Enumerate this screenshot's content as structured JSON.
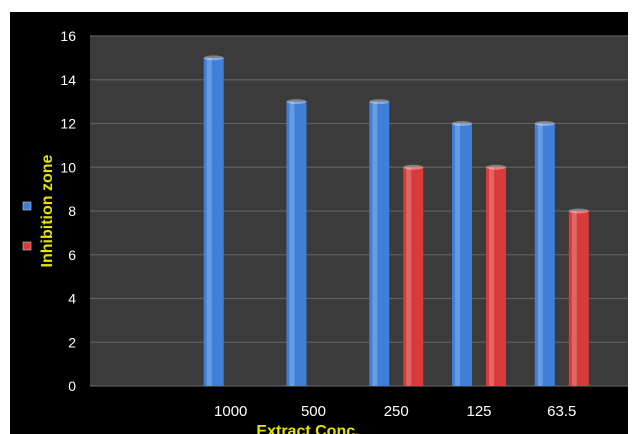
{
  "chart_data": {
    "type": "bar",
    "title": "",
    "xlabel": "Extract Conc.",
    "ylabel": "Inhibition zone",
    "categories": [
      "",
      "1000",
      "500",
      "250",
      "125",
      "63.5"
    ],
    "series": [
      {
        "values": [
          null,
          15,
          13,
          13,
          12,
          12
        ],
        "color": "#3f7fd8"
      },
      {
        "values": [
          null,
          null,
          null,
          10,
          10,
          8
        ],
        "color": "#d93a3a"
      }
    ],
    "ylim": [
      0,
      16
    ],
    "yticks": [
      "0",
      "2",
      "4",
      "6",
      "8",
      "10",
      "12",
      "14",
      "16"
    ],
    "grid": true,
    "legend": "left (marker swatches only)",
    "colors": {
      "frame": "#000000",
      "plot_area": "#3b3b3b",
      "gridline": "#5e5e5e",
      "axis_title": "#e5e500",
      "tick_label": "#ffffff"
    }
  }
}
